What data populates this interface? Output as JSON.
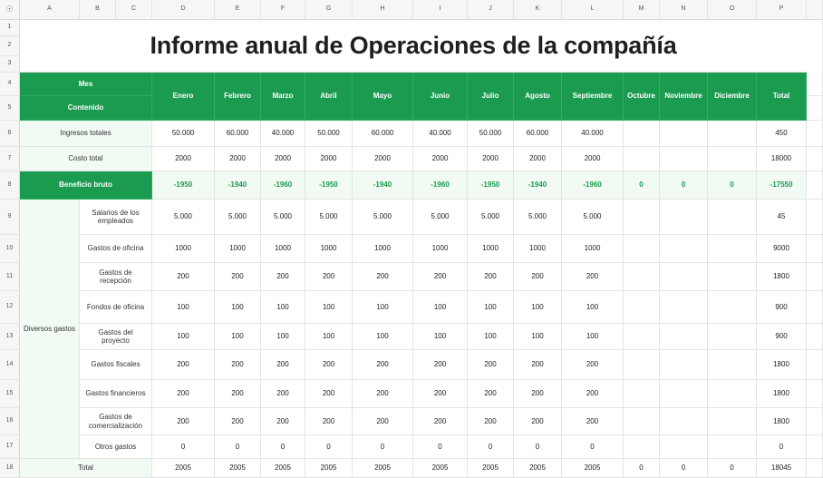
{
  "columns": [
    "A",
    "B",
    "C",
    "D",
    "E",
    "F",
    "G",
    "H",
    "I",
    "J",
    "K",
    "L",
    "M",
    "N",
    "O",
    "P"
  ],
  "rows": [
    "1",
    "2",
    "3",
    "4",
    "5",
    "6",
    "7",
    "8",
    "9",
    "10",
    "11",
    "12",
    "13",
    "14",
    "15",
    "16",
    "17",
    "18"
  ],
  "corner_icon": "eye-icon",
  "title": "Informe anual de Operaciones de la compañía",
  "header": {
    "mes": "Mes",
    "contenido": "Contenido",
    "months": [
      "Enero",
      "Febrero",
      "Marzo",
      "Abril",
      "Mayo",
      "Junio",
      "Julio",
      "Agosto",
      "Septiembre",
      "Octubre",
      "Noviembre",
      "Diciembre"
    ],
    "total": "Total"
  },
  "ingresos": {
    "label": "Ingresos totales",
    "values": [
      "50.000",
      "60.000",
      "40.000",
      "50.000",
      "60.000",
      "40.000",
      "50.000",
      "60.000",
      "40.000",
      "",
      "",
      ""
    ],
    "total": "450"
  },
  "costo": {
    "label": "Costo total",
    "values": [
      "2000",
      "2000",
      "2000",
      "2000",
      "2000",
      "2000",
      "2000",
      "2000",
      "2000",
      "",
      "",
      ""
    ],
    "total": "18000"
  },
  "beneficio": {
    "label": "Beneficio bruto",
    "values": [
      "-1950",
      "-1940",
      "-1960",
      "-1950",
      "-1940",
      "-1960",
      "-1950",
      "-1940",
      "-1960",
      "0",
      "0",
      "0"
    ],
    "total": "-17550"
  },
  "diversos": {
    "label": "Diversos gastos",
    "items": [
      {
        "label": "Salarios de los\nempleados",
        "values": [
          "5.000",
          "5.000",
          "5.000",
          "5.000",
          "5.000",
          "5.000",
          "5.000",
          "5.000",
          "5.000",
          "",
          "",
          ""
        ],
        "total": "45"
      },
      {
        "label": "Gastos de oficina",
        "values": [
          "1000",
          "1000",
          "1000",
          "1000",
          "1000",
          "1000",
          "1000",
          "1000",
          "1000",
          "",
          "",
          ""
        ],
        "total": "9000"
      },
      {
        "label": "Gastos de recepción",
        "values": [
          "200",
          "200",
          "200",
          "200",
          "200",
          "200",
          "200",
          "200",
          "200",
          "",
          "",
          ""
        ],
        "total": "1800"
      },
      {
        "label": "Fondos de oficina",
        "values": [
          "100",
          "100",
          "100",
          "100",
          "100",
          "100",
          "100",
          "100",
          "100",
          "",
          "",
          ""
        ],
        "total": "900"
      },
      {
        "label": "Gastos del proyecto",
        "values": [
          "100",
          "100",
          "100",
          "100",
          "100",
          "100",
          "100",
          "100",
          "100",
          "",
          "",
          ""
        ],
        "total": "900"
      },
      {
        "label": "Gastos fiscales",
        "values": [
          "200",
          "200",
          "200",
          "200",
          "200",
          "200",
          "200",
          "200",
          "200",
          "",
          "",
          ""
        ],
        "total": "1800"
      },
      {
        "label": "Gastos financieros",
        "values": [
          "200",
          "200",
          "200",
          "200",
          "200",
          "200",
          "200",
          "200",
          "200",
          "",
          "",
          ""
        ],
        "total": "1800"
      },
      {
        "label": "Gastos de\ncomercialización",
        "values": [
          "200",
          "200",
          "200",
          "200",
          "200",
          "200",
          "200",
          "200",
          "200",
          "",
          "",
          ""
        ],
        "total": "1800"
      },
      {
        "label": "Otros gastos",
        "values": [
          "0",
          "0",
          "0",
          "0",
          "0",
          "0",
          "0",
          "0",
          "0",
          "",
          "",
          ""
        ],
        "total": "0"
      }
    ]
  },
  "total_row": {
    "label": "Total",
    "values": [
      "2005",
      "2005",
      "2005",
      "2005",
      "2005",
      "2005",
      "2005",
      "2005",
      "2005",
      "0",
      "0",
      "0"
    ],
    "total": "18045"
  },
  "colors": {
    "accent": "#1a9b4f",
    "label_bg": "#f1faf3",
    "header_bg": "#f6f6f6"
  }
}
